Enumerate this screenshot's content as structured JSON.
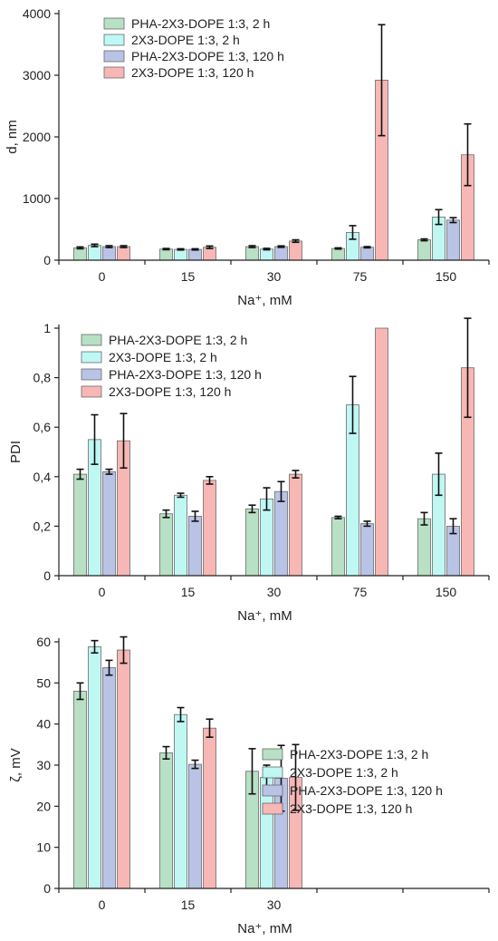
{
  "colors": {
    "PHA-2X3-DOPE 1:3, 2 h": "#b8e0c4",
    "2X3-DOPE 1:3, 2 h": "#bff7f3",
    "PHA-2X3-DOPE 1:3, 120 h": "#b9c3e6",
    "2X3-DOPE 1:3, 120 h": "#f7b7b5"
  },
  "chart_data": [
    {
      "type": "bar",
      "xlabel": "Na⁺, mM",
      "ylabel": "d, nm",
      "ylim": [
        0,
        4000
      ],
      "yticks": [
        "0",
        "1000",
        "2000",
        "3000",
        "4000"
      ],
      "legend_position": "top-left",
      "grid": false,
      "categories": [
        "0",
        "15",
        "30",
        "75",
        "150"
      ],
      "series": [
        {
          "name": "PHA-2X3-DOPE 1:3, 2 h",
          "values": [
            200,
            180,
            220,
            190,
            330
          ],
          "errors": [
            15,
            10,
            15,
            10,
            15
          ]
        },
        {
          "name": "2X3-DOPE 1:3, 2 h",
          "values": [
            240,
            175,
            180,
            450,
            700
          ],
          "errors": [
            20,
            10,
            12,
            110,
            120
          ]
        },
        {
          "name": "PHA-2X3-DOPE 1:3, 120 h",
          "values": [
            220,
            175,
            220,
            210,
            650
          ],
          "errors": [
            15,
            10,
            12,
            10,
            40
          ]
        },
        {
          "name": "2X3-DOPE 1:3, 120 h",
          "values": [
            220,
            210,
            310,
            2920,
            1710
          ],
          "errors": [
            15,
            20,
            20,
            900,
            500
          ]
        }
      ]
    },
    {
      "type": "bar",
      "xlabel": "Na⁺, mM",
      "ylabel": "PDI",
      "ylim": [
        0,
        1
      ],
      "yticks": [
        "0",
        "0,2",
        "0,4",
        "0,6",
        "0,8",
        "1"
      ],
      "legend_position": "top-left",
      "grid": false,
      "categories": [
        "0",
        "15",
        "30",
        "75",
        "150"
      ],
      "series": [
        {
          "name": "PHA-2X3-DOPE 1:3, 2 h",
          "values": [
            0.41,
            0.25,
            0.27,
            0.235,
            0.23
          ],
          "errors": [
            0.02,
            0.015,
            0.015,
            0.005,
            0.025
          ]
        },
        {
          "name": "2X3-DOPE 1:3, 2 h",
          "values": [
            0.55,
            0.325,
            0.31,
            0.69,
            0.41
          ],
          "errors": [
            0.1,
            0.008,
            0.045,
            0.115,
            0.085
          ]
        },
        {
          "name": "PHA-2X3-DOPE 1:3, 120 h",
          "values": [
            0.42,
            0.24,
            0.34,
            0.21,
            0.2
          ],
          "errors": [
            0.01,
            0.02,
            0.04,
            0.01,
            0.03
          ]
        },
        {
          "name": "2X3-DOPE 1:3, 120 h",
          "values": [
            0.545,
            0.385,
            0.41,
            1.0,
            0.84
          ],
          "errors": [
            0.11,
            0.015,
            0.015,
            0.0,
            0.2
          ]
        }
      ]
    },
    {
      "type": "bar",
      "xlabel": "Na⁺, mM",
      "ylabel": "ζ, mV",
      "ylim": [
        0,
        60
      ],
      "yticks": [
        "0",
        "10",
        "20",
        "30",
        "40",
        "50",
        "60"
      ],
      "legend_position": "top-right",
      "grid": false,
      "categories": [
        "0",
        "15",
        "30",
        "",
        ""
      ],
      "series": [
        {
          "name": "PHA-2X3-DOPE 1:3, 2 h",
          "values": [
            48,
            33,
            28.5,
            null,
            null
          ],
          "errors": [
            2,
            1.5,
            5.5,
            null,
            null
          ]
        },
        {
          "name": "2X3-DOPE 1:3, 2 h",
          "values": [
            58.8,
            42.3,
            27,
            null,
            null
          ],
          "errors": [
            1.5,
            1.7,
            3,
            null,
            null
          ]
        },
        {
          "name": "PHA-2X3-DOPE 1:3, 120 h",
          "values": [
            53.7,
            30.2,
            26.8,
            null,
            null
          ],
          "errors": [
            1.8,
            1,
            8,
            null,
            null
          ]
        },
        {
          "name": "2X3-DOPE 1:3, 120 h",
          "values": [
            58,
            39,
            27,
            null,
            null
          ],
          "errors": [
            3.2,
            2.2,
            8,
            null,
            null
          ]
        }
      ]
    }
  ]
}
